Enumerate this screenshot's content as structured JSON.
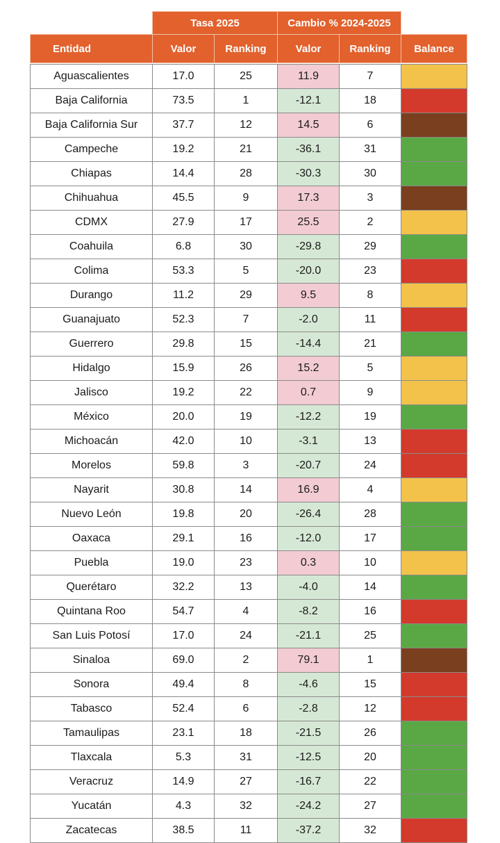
{
  "headers": {
    "tasa_group": "Tasa 2025",
    "cambio_group": "Cambio % 2024-2025",
    "entidad": "Entidad",
    "valor": "Valor",
    "ranking": "Ranking",
    "valor2": "Valor",
    "ranking2": "Ranking",
    "balance": "Balance"
  },
  "colors": {
    "header": "#e2612d",
    "positive_change": "#f2cbd3",
    "negative_change": "#d5e8d5",
    "balance_yellow": "#f2c24a",
    "balance_red": "#d33a2c",
    "balance_brown": "#7a3f1f",
    "balance_green": "#5aa845"
  },
  "rows": [
    {
      "entidad": "Aguascalientes",
      "valor": "17.0",
      "ranking": "25",
      "cambio": "11.9",
      "ranking_cambio": "7",
      "balance": "yellow"
    },
    {
      "entidad": "Baja California",
      "valor": "73.5",
      "ranking": "1",
      "cambio": "-12.1",
      "ranking_cambio": "18",
      "balance": "red"
    },
    {
      "entidad": "Baja California Sur",
      "valor": "37.7",
      "ranking": "12",
      "cambio": "14.5",
      "ranking_cambio": "6",
      "balance": "brown"
    },
    {
      "entidad": "Campeche",
      "valor": "19.2",
      "ranking": "21",
      "cambio": "-36.1",
      "ranking_cambio": "31",
      "balance": "green"
    },
    {
      "entidad": "Chiapas",
      "valor": "14.4",
      "ranking": "28",
      "cambio": "-30.3",
      "ranking_cambio": "30",
      "balance": "green"
    },
    {
      "entidad": "Chihuahua",
      "valor": "45.5",
      "ranking": "9",
      "cambio": "17.3",
      "ranking_cambio": "3",
      "balance": "brown"
    },
    {
      "entidad": "CDMX",
      "valor": "27.9",
      "ranking": "17",
      "cambio": "25.5",
      "ranking_cambio": "2",
      "balance": "yellow"
    },
    {
      "entidad": "Coahuila",
      "valor": "6.8",
      "ranking": "30",
      "cambio": "-29.8",
      "ranking_cambio": "29",
      "balance": "green"
    },
    {
      "entidad": "Colima",
      "valor": "53.3",
      "ranking": "5",
      "cambio": "-20.0",
      "ranking_cambio": "23",
      "balance": "red"
    },
    {
      "entidad": "Durango",
      "valor": "11.2",
      "ranking": "29",
      "cambio": "9.5",
      "ranking_cambio": "8",
      "balance": "yellow"
    },
    {
      "entidad": "Guanajuato",
      "valor": "52.3",
      "ranking": "7",
      "cambio": "-2.0",
      "ranking_cambio": "11",
      "balance": "red"
    },
    {
      "entidad": "Guerrero",
      "valor": "29.8",
      "ranking": "15",
      "cambio": "-14.4",
      "ranking_cambio": "21",
      "balance": "green"
    },
    {
      "entidad": "Hidalgo",
      "valor": "15.9",
      "ranking": "26",
      "cambio": "15.2",
      "ranking_cambio": "5",
      "balance": "yellow"
    },
    {
      "entidad": "Jalisco",
      "valor": "19.2",
      "ranking": "22",
      "cambio": "0.7",
      "ranking_cambio": "9",
      "balance": "yellow"
    },
    {
      "entidad": "México",
      "valor": "20.0",
      "ranking": "19",
      "cambio": "-12.2",
      "ranking_cambio": "19",
      "balance": "green"
    },
    {
      "entidad": "Michoacán",
      "valor": "42.0",
      "ranking": "10",
      "cambio": "-3.1",
      "ranking_cambio": "13",
      "balance": "red"
    },
    {
      "entidad": "Morelos",
      "valor": "59.8",
      "ranking": "3",
      "cambio": "-20.7",
      "ranking_cambio": "24",
      "balance": "red"
    },
    {
      "entidad": "Nayarit",
      "valor": "30.8",
      "ranking": "14",
      "cambio": "16.9",
      "ranking_cambio": "4",
      "balance": "yellow"
    },
    {
      "entidad": "Nuevo León",
      "valor": "19.8",
      "ranking": "20",
      "cambio": "-26.4",
      "ranking_cambio": "28",
      "balance": "green"
    },
    {
      "entidad": "Oaxaca",
      "valor": "29.1",
      "ranking": "16",
      "cambio": "-12.0",
      "ranking_cambio": "17",
      "balance": "green"
    },
    {
      "entidad": "Puebla",
      "valor": "19.0",
      "ranking": "23",
      "cambio": "0.3",
      "ranking_cambio": "10",
      "balance": "yellow"
    },
    {
      "entidad": "Querétaro",
      "valor": "32.2",
      "ranking": "13",
      "cambio": "-4.0",
      "ranking_cambio": "14",
      "balance": "green"
    },
    {
      "entidad": "Quintana Roo",
      "valor": "54.7",
      "ranking": "4",
      "cambio": "-8.2",
      "ranking_cambio": "16",
      "balance": "red"
    },
    {
      "entidad": "San Luis Potosí",
      "valor": "17.0",
      "ranking": "24",
      "cambio": "-21.1",
      "ranking_cambio": "25",
      "balance": "green"
    },
    {
      "entidad": "Sinaloa",
      "valor": "69.0",
      "ranking": "2",
      "cambio": "79.1",
      "ranking_cambio": "1",
      "balance": "brown"
    },
    {
      "entidad": "Sonora",
      "valor": "49.4",
      "ranking": "8",
      "cambio": "-4.6",
      "ranking_cambio": "15",
      "balance": "red"
    },
    {
      "entidad": "Tabasco",
      "valor": "52.4",
      "ranking": "6",
      "cambio": "-2.8",
      "ranking_cambio": "12",
      "balance": "red"
    },
    {
      "entidad": "Tamaulipas",
      "valor": "23.1",
      "ranking": "18",
      "cambio": "-21.5",
      "ranking_cambio": "26",
      "balance": "green"
    },
    {
      "entidad": "Tlaxcala",
      "valor": "5.3",
      "ranking": "31",
      "cambio": "-12.5",
      "ranking_cambio": "20",
      "balance": "green"
    },
    {
      "entidad": "Veracruz",
      "valor": "14.9",
      "ranking": "27",
      "cambio": "-16.7",
      "ranking_cambio": "22",
      "balance": "green"
    },
    {
      "entidad": "Yucatán",
      "valor": "4.3",
      "ranking": "32",
      "cambio": "-24.2",
      "ranking_cambio": "27",
      "balance": "green"
    },
    {
      "entidad": "Zacatecas",
      "valor": "38.5",
      "ranking": "11",
      "cambio": "-37.2",
      "ranking_cambio": "32",
      "balance": "red"
    }
  ]
}
